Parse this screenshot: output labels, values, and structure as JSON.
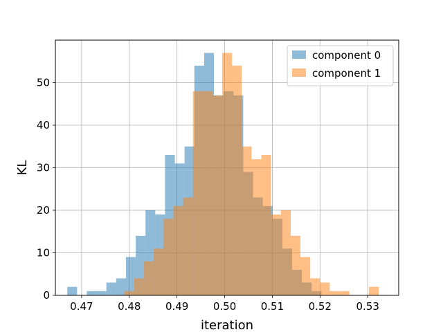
{
  "chart_data": {
    "type": "bar",
    "subtype": "overlapping-histogram",
    "xlabel": "iteration",
    "ylabel": "KL",
    "xlim": [
      0.4645,
      0.5365
    ],
    "ylim": [
      0,
      60
    ],
    "xticks": [
      0.47,
      0.48,
      0.49,
      0.5,
      0.51,
      0.52,
      0.53
    ],
    "xtick_labels": [
      "0.47",
      "0.48",
      "0.49",
      "0.50",
      "0.51",
      "0.52",
      "0.53"
    ],
    "yticks": [
      0,
      10,
      20,
      30,
      40,
      50
    ],
    "ytick_labels": [
      "0",
      "10",
      "20",
      "30",
      "40",
      "50"
    ],
    "grid": true,
    "legend_position": "top-right",
    "series": [
      {
        "name": "component 0",
        "color": "#1f77b4",
        "alpha": 0.5,
        "bin_start": 0.467,
        "bin_width": 0.00205,
        "counts": [
          2,
          0,
          1,
          1,
          3,
          4,
          9,
          14,
          20,
          19,
          33,
          31,
          35,
          54,
          57,
          47,
          48,
          47,
          29,
          23,
          21,
          18,
          11,
          6,
          3,
          1
        ]
      },
      {
        "name": "component 1",
        "color": "#ff7f0e",
        "alpha": 0.5,
        "bin_start": 0.479,
        "bin_width": 0.00205,
        "counts": [
          1,
          4,
          8,
          11,
          18,
          21,
          23,
          48,
          48,
          47,
          57,
          54,
          35,
          32,
          33,
          19,
          20,
          14,
          9,
          4,
          3,
          1,
          1,
          0,
          0,
          2
        ]
      }
    ]
  }
}
